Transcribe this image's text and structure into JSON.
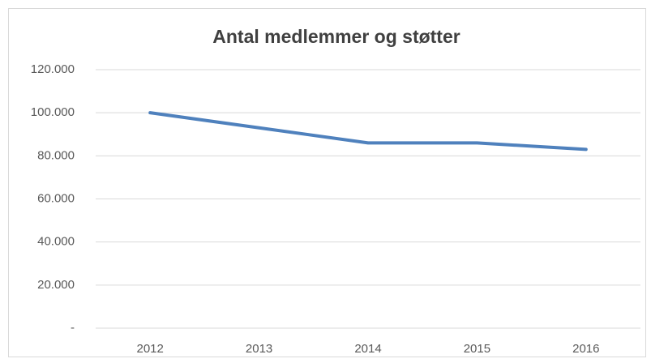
{
  "chart_data": {
    "type": "line",
    "title": "Antal medlemmer og støtter",
    "categories": [
      "2012",
      "2013",
      "2014",
      "2015",
      "2016"
    ],
    "series": [
      {
        "name": "Antal medlemmer og støtter",
        "color": "#4f81bd",
        "values": [
          100000,
          93000,
          86000,
          86000,
          83000
        ]
      }
    ],
    "ylim": [
      0,
      120000
    ],
    "yticks": [
      {
        "value": 0,
        "label": "-"
      },
      {
        "value": 20000,
        "label": "20.000"
      },
      {
        "value": 40000,
        "label": "40.000"
      },
      {
        "value": 60000,
        "label": "60.000"
      },
      {
        "value": 80000,
        "label": "80.000"
      },
      {
        "value": 100000,
        "label": "100.000"
      },
      {
        "value": 120000,
        "label": "120.000"
      }
    ],
    "grid": true
  }
}
